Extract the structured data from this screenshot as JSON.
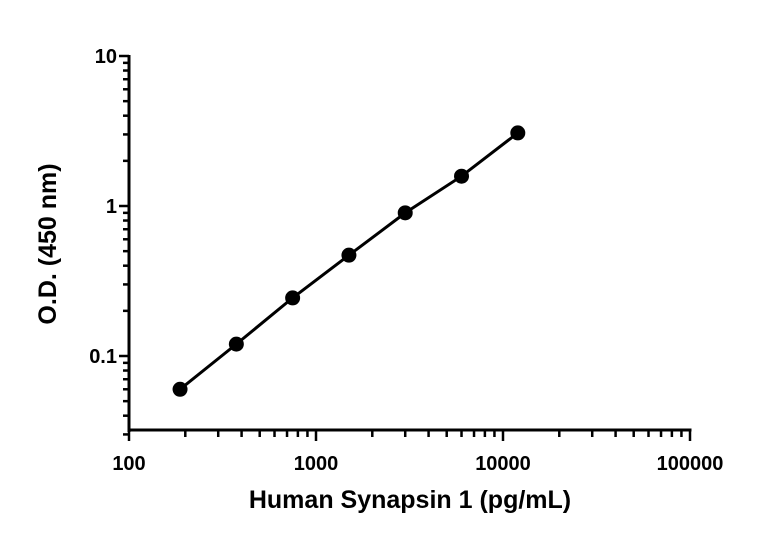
{
  "chart_data": {
    "type": "line",
    "title": "",
    "xlabel": "Human Synapsin 1 (pg/mL)",
    "ylabel": "O.D. (450 nm)",
    "x_scale": "log",
    "y_scale": "log",
    "xlim": [
      100,
      100000
    ],
    "ylim": [
      0.03,
      10
    ],
    "x_ticks": [
      "100",
      "1000",
      "10000",
      "100000"
    ],
    "x_tick_values": [
      100,
      1000,
      10000,
      100000
    ],
    "y_ticks": [
      "0.1",
      "1",
      "10"
    ],
    "y_tick_values": [
      0.1,
      1,
      10
    ],
    "grid": false,
    "series": [
      {
        "x": [
          187.5,
          375,
          750,
          1500,
          3000,
          6000,
          12000
        ],
        "y": [
          0.06,
          0.12,
          0.244,
          0.47,
          0.9,
          1.58,
          3.07
        ],
        "color": "#000000",
        "marker": "circle"
      }
    ]
  }
}
